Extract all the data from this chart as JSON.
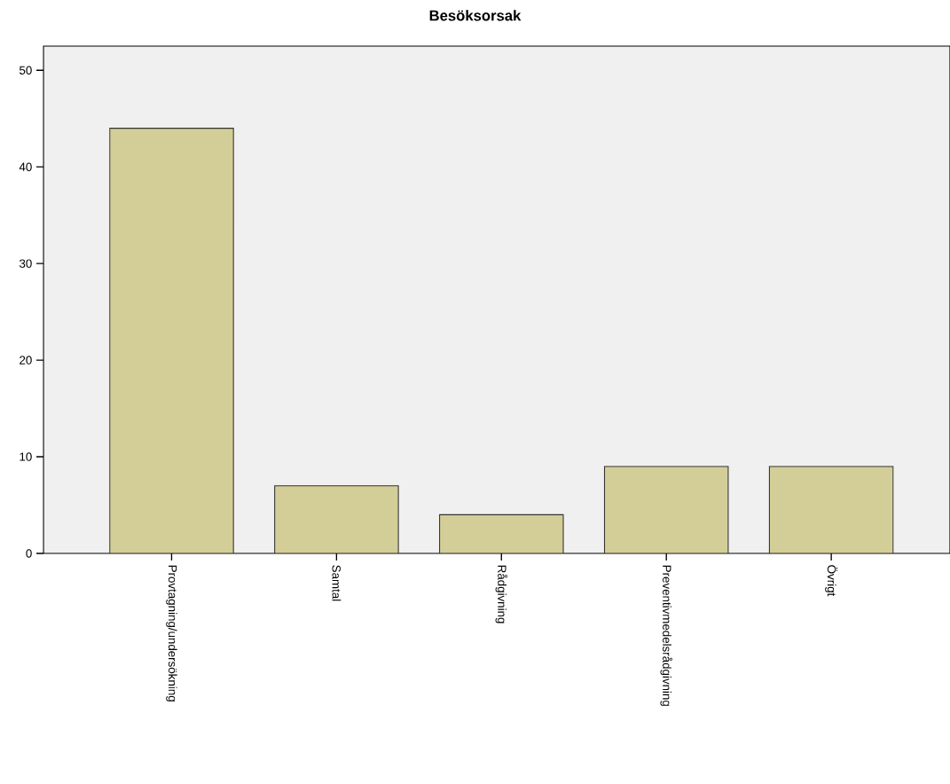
{
  "chart_data": {
    "type": "bar",
    "title": "Besöksorsak",
    "categories": [
      "Provtagning/undersökning",
      "Samtal",
      "Rådgivning",
      "Preventivmedelsrådgivning",
      "Övrigt"
    ],
    "values": [
      44,
      7,
      4,
      9,
      9
    ],
    "color": "#d3ce97",
    "ylim": [
      0,
      52.5
    ],
    "yticks": [
      0,
      10,
      20,
      30,
      40,
      50
    ],
    "grid": false
  }
}
